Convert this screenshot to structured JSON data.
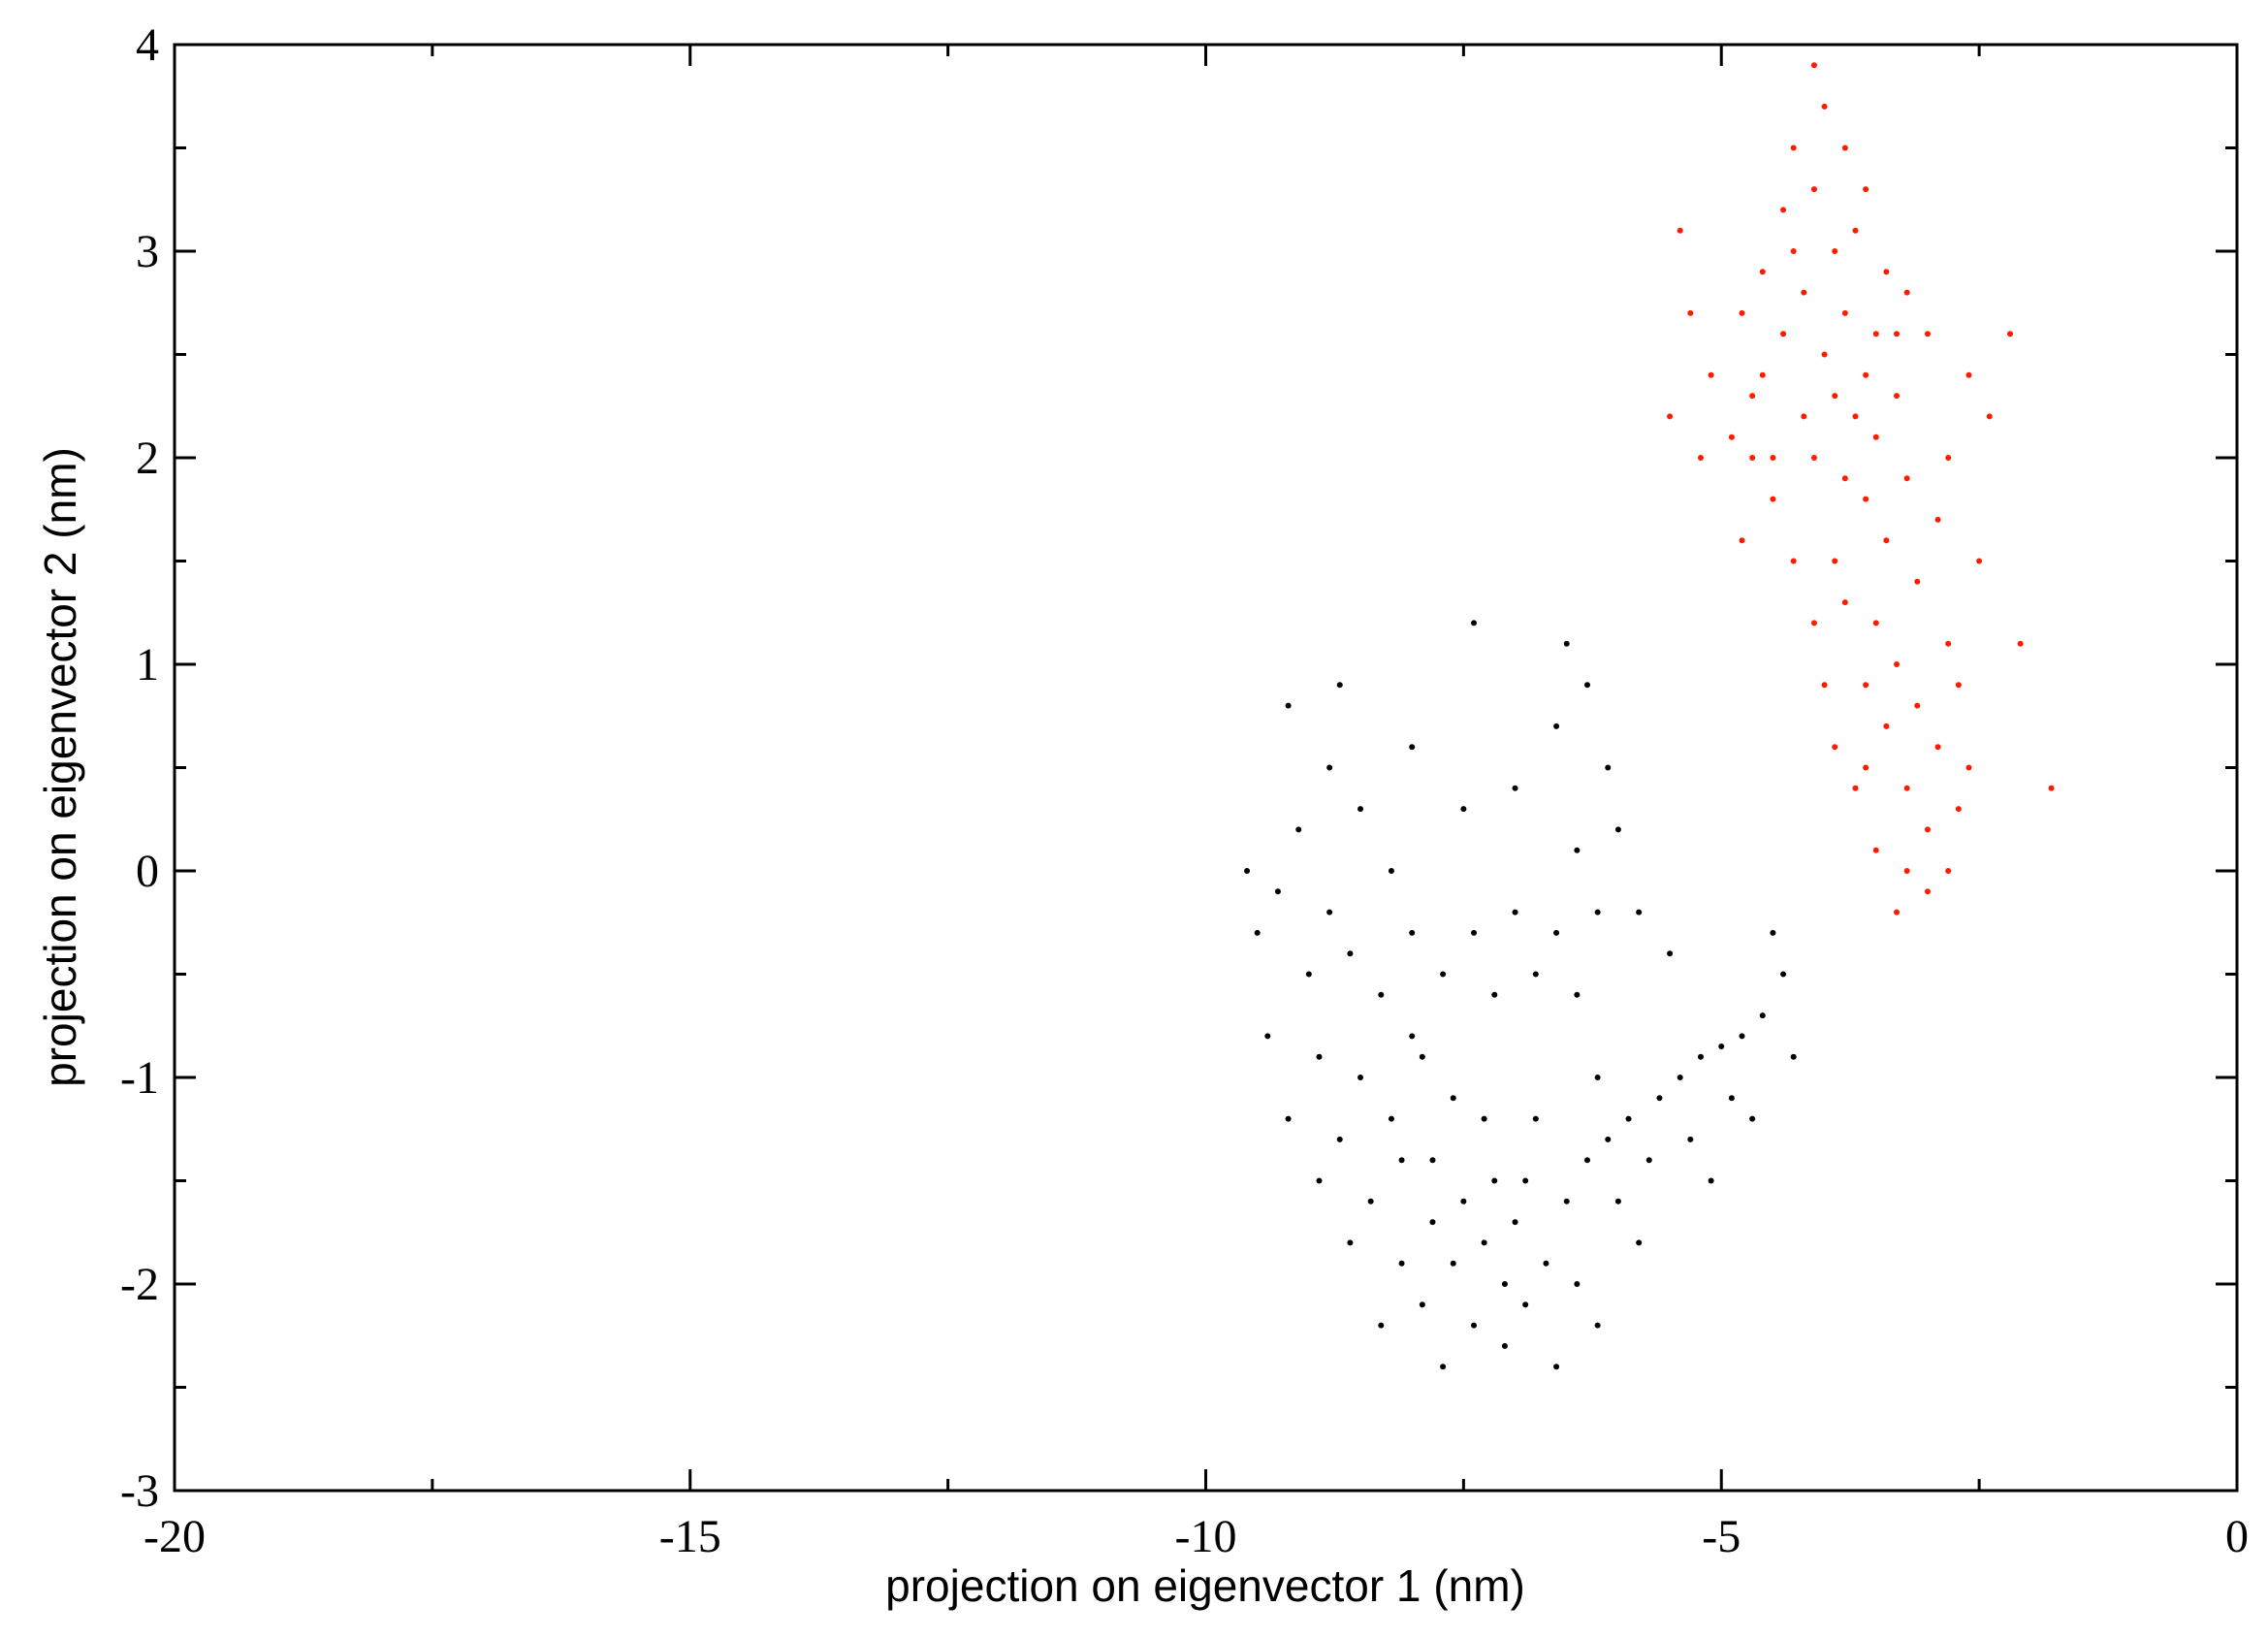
{
  "chart_data": {
    "type": "scatter",
    "x_label": "projection on eigenvector 1 (nm)",
    "y_label": "projection on eigenvector 2 (nm)",
    "xlim": [
      -20,
      0
    ],
    "ylim": [
      -3,
      4
    ],
    "xticks": [
      -20,
      -15,
      -10,
      -5,
      0
    ],
    "yticks": [
      -3,
      -2,
      -1,
      0,
      1,
      2,
      3,
      4
    ],
    "xminorticks": [
      -17.5,
      -12.5,
      -7.5,
      -2.5
    ],
    "yminorticks": [
      -2.5,
      -1.5,
      -0.5,
      0.5,
      1.5,
      2.5,
      3.5
    ],
    "grid": false,
    "series": [
      {
        "color": "#000000",
        "x": [
          -8.5,
          -8.2,
          -8.0,
          -7.8,
          -7.5,
          -7.3,
          -7.1,
          -7.0,
          -7.6,
          -8.3,
          -8.6,
          -8.8,
          -9.0,
          -8.9,
          -8.7,
          -8.4,
          -8.1,
          -7.9,
          -7.4,
          -6.9,
          -6.7,
          -6.5,
          -6.3,
          -6.1,
          -5.9,
          -5.6,
          -5.4,
          -5.2,
          -5.0,
          -4.8,
          -4.6,
          -4.9,
          -5.3,
          -5.7,
          -6.0,
          -6.2,
          -6.4,
          -6.6,
          -6.8,
          -7.0,
          -7.2,
          -7.4,
          -7.7,
          -8.0,
          -8.2,
          -8.5,
          -8.8,
          -9.1,
          -9.3,
          -9.5,
          -9.6,
          -9.2,
          -8.7,
          -8.0,
          -7.5,
          -7.0,
          -6.6,
          -6.3,
          -6.1,
          -6.0,
          -5.8,
          -5.5,
          -6.4,
          -6.2,
          -7.8,
          -7.6,
          -7.2,
          -6.8,
          -7.9,
          -8.6,
          -8.3,
          -7.7,
          -7.1,
          -6.6,
          -6.4,
          -9.2,
          -9.4,
          -8.1,
          -7.3,
          -6.9,
          -4.7,
          -5.1,
          -4.4,
          -4.3,
          -4.5,
          -5.8,
          -6.2,
          -7.4,
          -6.5,
          -8.9
        ],
        "y": [
          -1.0,
          -1.2,
          -0.8,
          -1.4,
          -1.6,
          -1.8,
          -2.0,
          -1.7,
          -1.1,
          -0.6,
          -0.4,
          -0.2,
          -0.5,
          -0.9,
          -1.3,
          -1.6,
          -1.9,
          -2.1,
          -2.2,
          -2.1,
          -1.9,
          -1.6,
          -1.4,
          -1.3,
          -1.2,
          -1.1,
          -1.0,
          -0.9,
          -0.85,
          -0.8,
          -0.7,
          -1.1,
          -1.3,
          -1.4,
          -1.6,
          -1.0,
          -0.6,
          -0.3,
          -0.5,
          -0.2,
          -0.6,
          -0.3,
          -0.5,
          -0.3,
          0.0,
          0.3,
          0.5,
          0.2,
          -0.1,
          -0.3,
          0.0,
          0.8,
          0.9,
          0.6,
          0.3,
          0.4,
          0.7,
          0.9,
          0.5,
          0.2,
          -0.2,
          -0.4,
          0.1,
          -0.2,
          -1.7,
          -1.9,
          -1.5,
          -1.2,
          -0.9,
          -1.8,
          -2.2,
          -2.4,
          -2.3,
          -2.4,
          -2.0,
          -1.2,
          -0.8,
          -1.4,
          -1.2,
          -1.5,
          -1.2,
          -1.5,
          -0.5,
          -0.9,
          -0.3,
          -1.8,
          -2.2,
          1.2,
          1.1,
          -1.5
        ]
      },
      {
        "color": "#ff1a00",
        "x": [
          -4.0,
          -3.8,
          -3.6,
          -4.2,
          -4.4,
          -3.9,
          -4.1,
          -3.7,
          -4.3,
          -4.0,
          -3.5,
          -3.3,
          -3.2,
          -3.4,
          -3.6,
          -3.8,
          -4.5,
          -4.7,
          -4.8,
          -4.6,
          -4.9,
          -5.1,
          -4.5,
          -3.9,
          -3.5,
          -3.3,
          -3.1,
          -2.9,
          -3.2,
          -3.0,
          -2.8,
          -2.7,
          -2.6,
          -3.4,
          -3.6,
          -3.7,
          -3.5,
          -3.0,
          -2.8,
          -3.3,
          -2.5,
          -2.4,
          -2.6,
          -2.8,
          -3.0,
          -3.2,
          -3.4,
          -3.6,
          -4.2,
          -4.6,
          -5.3,
          -5.2,
          -4.3,
          -4.1,
          -3.8,
          -4.0,
          -3.9,
          -3.1,
          -2.9,
          -3.7,
          -3.9,
          -4.1,
          -3.5,
          -3.3,
          -4.3,
          -4.4,
          -3.8,
          -4.1,
          -5.4,
          -5.5,
          -1.8,
          -2.2,
          -2.1,
          -3.6,
          -3.2,
          -2.7,
          -4.7,
          -4.8
        ],
        "y": [
          2.5,
          2.7,
          2.4,
          2.2,
          2.6,
          3.0,
          3.3,
          3.1,
          3.5,
          3.7,
          2.1,
          2.3,
          1.9,
          1.6,
          1.8,
          1.9,
          2.0,
          2.3,
          2.7,
          2.9,
          2.1,
          2.4,
          1.8,
          1.5,
          1.2,
          1.0,
          0.8,
          0.6,
          0.4,
          0.2,
          1.1,
          0.9,
          0.5,
          0.7,
          0.9,
          0.4,
          0.1,
          -0.1,
          0.0,
          -0.2,
          1.5,
          2.2,
          2.4,
          2.0,
          2.6,
          2.8,
          2.9,
          3.3,
          2.8,
          2.4,
          2.7,
          2.0,
          1.5,
          1.2,
          1.3,
          0.9,
          0.6,
          1.4,
          1.7,
          2.2,
          2.3,
          2.0,
          2.6,
          2.6,
          3.0,
          3.2,
          3.5,
          3.9,
          3.1,
          2.2,
          0.4,
          2.6,
          1.1,
          0.5,
          0.0,
          0.3,
          2.0,
          1.6
        ]
      }
    ]
  }
}
